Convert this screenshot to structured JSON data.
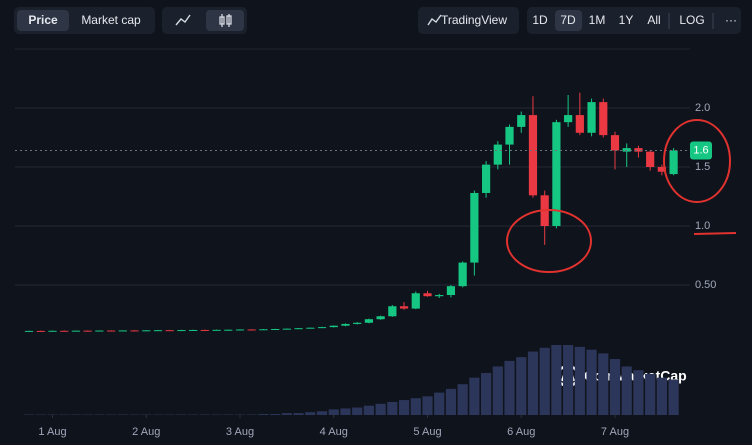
{
  "toolbar": {
    "price": "Price",
    "market_cap": "Market cap",
    "tradingview": "TradingView",
    "ranges": [
      "1D",
      "7D",
      "1M",
      "1Y",
      "All"
    ],
    "log": "LOG",
    "more": "···"
  },
  "watermark": "CoinMarketCap",
  "chart_data": {
    "type": "candlestick",
    "x": [
      -0.25,
      -0.125,
      0,
      0.125,
      0.25,
      0.375,
      0.5,
      0.625,
      0.75,
      0.875,
      1,
      1.125,
      1.25,
      1.375,
      1.5,
      1.625,
      1.75,
      1.875,
      2,
      2.125,
      2.25,
      2.375,
      2.5,
      2.625,
      2.75,
      2.875,
      3,
      3.125,
      3.25,
      3.375,
      3.5,
      3.625,
      3.75,
      3.875,
      4,
      4.125,
      4.25,
      4.375,
      4.5,
      4.625,
      4.75,
      4.875,
      5,
      5.125,
      5.25,
      5.375,
      5.5,
      5.625,
      5.75,
      5.875,
      6,
      6.125,
      6.25,
      6.375,
      6.5,
      6.625
    ],
    "open": [
      0.11,
      0.111,
      0.11,
      0.112,
      0.111,
      0.113,
      0.112,
      0.114,
      0.113,
      0.115,
      0.114,
      0.116,
      0.117,
      0.116,
      0.118,
      0.119,
      0.118,
      0.12,
      0.121,
      0.123,
      0.122,
      0.125,
      0.127,
      0.13,
      0.134,
      0.138,
      0.143,
      0.155,
      0.17,
      0.18,
      0.21,
      0.235,
      0.32,
      0.3,
      0.43,
      0.405,
      0.415,
      0.49,
      0.69,
      1.28,
      1.52,
      1.69,
      1.84,
      1.94,
      1.26,
      1.0,
      1.88,
      1.94,
      1.79,
      2.05,
      1.77,
      1.63,
      1.66,
      1.63,
      1.5,
      1.44
    ],
    "high": [
      0.113,
      0.114,
      0.113,
      0.115,
      0.114,
      0.116,
      0.115,
      0.117,
      0.116,
      0.118,
      0.117,
      0.119,
      0.12,
      0.12,
      0.121,
      0.122,
      0.122,
      0.123,
      0.125,
      0.126,
      0.127,
      0.129,
      0.132,
      0.136,
      0.14,
      0.146,
      0.158,
      0.175,
      0.185,
      0.215,
      0.24,
      0.33,
      0.355,
      0.445,
      0.45,
      0.425,
      0.5,
      0.7,
      1.3,
      1.55,
      1.72,
      1.86,
      1.97,
      2.1,
      1.3,
      1.9,
      2.11,
      2.13,
      2.08,
      2.08,
      1.8,
      1.7,
      1.68,
      1.64,
      1.52,
      1.66
    ],
    "low": [
      0.108,
      0.109,
      0.108,
      0.11,
      0.109,
      0.111,
      0.11,
      0.112,
      0.111,
      0.113,
      0.112,
      0.114,
      0.115,
      0.114,
      0.116,
      0.117,
      0.116,
      0.118,
      0.119,
      0.121,
      0.12,
      0.123,
      0.125,
      0.128,
      0.131,
      0.135,
      0.14,
      0.15,
      0.165,
      0.176,
      0.205,
      0.23,
      0.29,
      0.295,
      0.4,
      0.39,
      0.395,
      0.48,
      0.58,
      1.24,
      1.48,
      1.52,
      1.79,
      1.24,
      0.84,
      0.98,
      1.84,
      1.77,
      1.76,
      1.75,
      1.48,
      1.5,
      1.58,
      1.47,
      1.43,
      1.43
    ],
    "close": [
      0.111,
      0.11,
      0.112,
      0.111,
      0.113,
      0.112,
      0.114,
      0.113,
      0.115,
      0.114,
      0.116,
      0.117,
      0.116,
      0.118,
      0.119,
      0.118,
      0.12,
      0.121,
      0.123,
      0.122,
      0.125,
      0.127,
      0.13,
      0.134,
      0.138,
      0.143,
      0.155,
      0.17,
      0.18,
      0.21,
      0.235,
      0.32,
      0.3,
      0.43,
      0.405,
      0.415,
      0.49,
      0.69,
      1.28,
      1.52,
      1.69,
      1.84,
      1.94,
      1.26,
      1.0,
      1.88,
      1.94,
      1.79,
      2.05,
      1.77,
      1.64,
      1.66,
      1.63,
      1.5,
      1.46,
      1.64
    ],
    "volume": [
      0.5,
      0.5,
      0.5,
      0.5,
      0.5,
      0.5,
      0.5,
      0.5,
      0.5,
      0.5,
      0.5,
      0.5,
      0.5,
      0.5,
      0.5,
      0.5,
      0.5,
      0.5,
      0.5,
      0.5,
      1,
      1,
      2,
      2,
      3,
      4,
      6,
      7,
      8,
      10,
      12,
      14,
      16,
      18,
      20,
      24,
      28,
      33,
      40,
      45,
      52,
      58,
      62,
      68,
      72,
      75,
      75,
      73,
      70,
      66,
      60,
      52,
      48,
      44,
      40,
      38
    ],
    "vlim": [
      0,
      75
    ],
    "up_color": "#16c784",
    "down_color": "#ea3943",
    "volume_color": "#2c365a",
    "xlim": [
      -0.4,
      6.8
    ],
    "xticks": [
      {
        "value": 0,
        "label": "1 Aug"
      },
      {
        "value": 1,
        "label": "2 Aug"
      },
      {
        "value": 2,
        "label": "3 Aug"
      },
      {
        "value": 3,
        "label": "4 Aug"
      },
      {
        "value": 4,
        "label": "5 Aug"
      },
      {
        "value": 5,
        "label": "6 Aug"
      },
      {
        "value": 6,
        "label": "7 Aug"
      }
    ],
    "ylim": [
      0,
      2.5
    ],
    "yticks": [
      {
        "value": 0.5,
        "label": "0.50"
      },
      {
        "value": 1,
        "label": "1.0"
      },
      {
        "value": 1.5,
        "label": "1.5"
      },
      {
        "value": 2,
        "label": "2.0"
      }
    ],
    "grid": true,
    "current_price": {
      "value": 1.64,
      "label": "1.6"
    }
  }
}
